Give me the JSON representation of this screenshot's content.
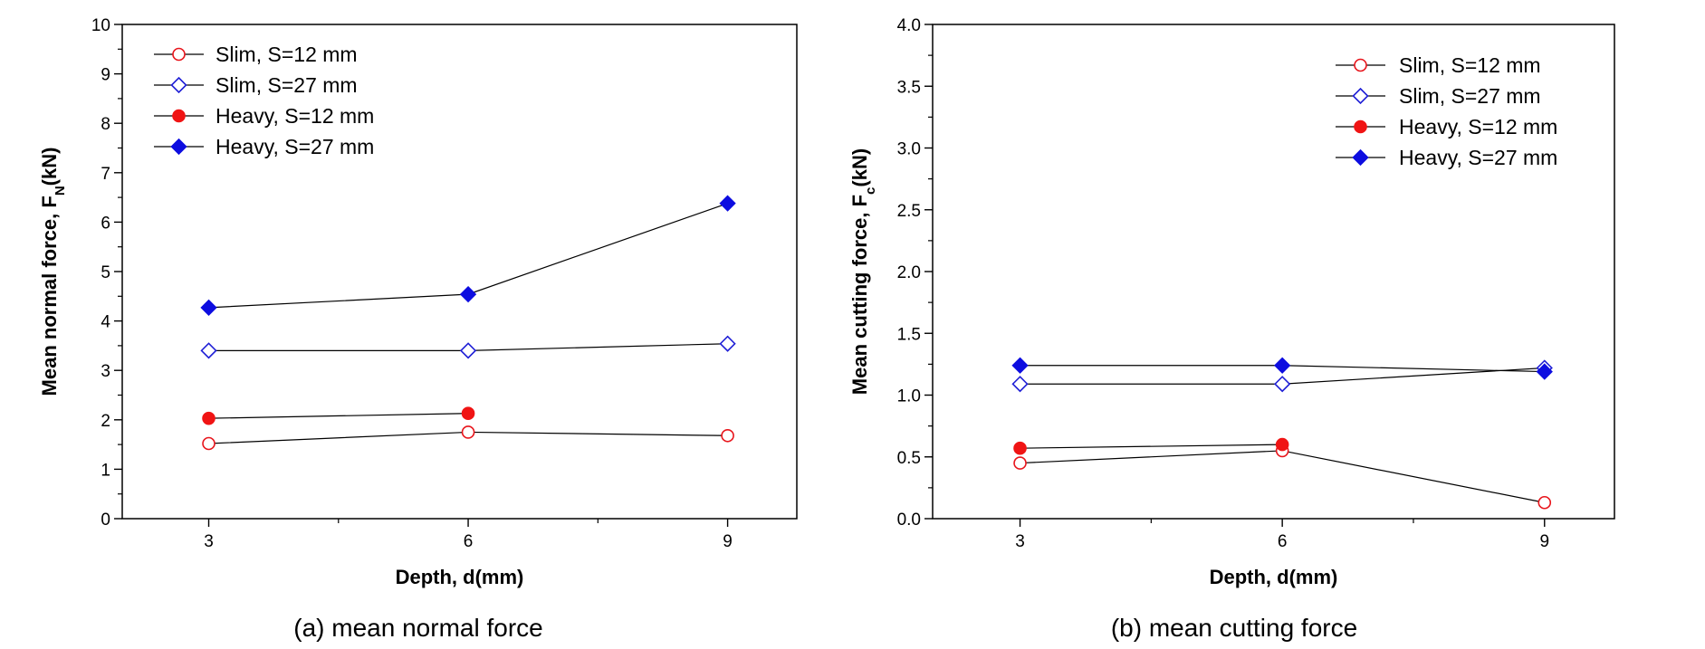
{
  "colors": {
    "slim_s12": "#e8141b",
    "slim_s27": "#1f1fd6",
    "heavy_s12": "#f01414",
    "heavy_s27": "#0d0de0",
    "line": "#000000"
  },
  "chart_data": [
    {
      "type": "line",
      "caption": "(a)  mean  normal  force",
      "xlabel": "Depth, d(mm)",
      "ylabel_main": "Mean normal force, F",
      "ylabel_sub": "N",
      "ylabel_unit": "(kN)",
      "x_ticks": [
        "3",
        "6",
        "9"
      ],
      "y_ticks": [
        "0",
        "1",
        "2",
        "3",
        "4",
        "5",
        "6",
        "7",
        "8",
        "9",
        "10"
      ],
      "xlim": [
        2,
        9.8
      ],
      "ylim": [
        0,
        10
      ],
      "grid": false,
      "legend_position": "top-left",
      "series": [
        {
          "name": "Slim, S=12 mm",
          "marker": "circle-open",
          "x": [
            3,
            6,
            9
          ],
          "y": [
            1.52,
            1.75,
            1.68
          ]
        },
        {
          "name": "Slim, S=27 mm",
          "marker": "diamond-open",
          "x": [
            3,
            6,
            9
          ],
          "y": [
            3.4,
            3.4,
            3.54
          ]
        },
        {
          "name": "Heavy, S=12 mm",
          "marker": "circle-filled",
          "x": [
            3,
            6
          ],
          "y": [
            2.03,
            2.13
          ]
        },
        {
          "name": "Heavy, S=27 mm",
          "marker": "diamond-filled",
          "x": [
            3,
            6,
            9
          ],
          "y": [
            4.27,
            4.54,
            6.38
          ]
        }
      ]
    },
    {
      "type": "line",
      "caption": "(b)  mean  cutting  force",
      "xlabel": "Depth, d(mm)",
      "ylabel_main": "Mean cutting force, F",
      "ylabel_sub": "c",
      "ylabel_unit": "(kN)",
      "x_ticks": [
        "3",
        "6",
        "9"
      ],
      "y_ticks": [
        "0.0",
        "0.5",
        "1.0",
        "1.5",
        "2.0",
        "2.5",
        "3.0",
        "3.5",
        "4.0"
      ],
      "xlim": [
        2,
        9.8
      ],
      "ylim": [
        0,
        4
      ],
      "grid": false,
      "legend_position": "top-right",
      "series": [
        {
          "name": "Slim, S=12 mm",
          "marker": "circle-open",
          "x": [
            3,
            6,
            9
          ],
          "y": [
            0.45,
            0.55,
            0.13
          ]
        },
        {
          "name": "Slim, S=27 mm",
          "marker": "diamond-open",
          "x": [
            3,
            6,
            9
          ],
          "y": [
            1.09,
            1.09,
            1.22
          ]
        },
        {
          "name": "Heavy, S=12 mm",
          "marker": "circle-filled",
          "x": [
            3,
            6
          ],
          "y": [
            0.57,
            0.6
          ]
        },
        {
          "name": "Heavy, S=27 mm",
          "marker": "diamond-filled",
          "x": [
            3,
            6,
            9
          ],
          "y": [
            1.24,
            1.24,
            1.19
          ]
        }
      ]
    }
  ]
}
